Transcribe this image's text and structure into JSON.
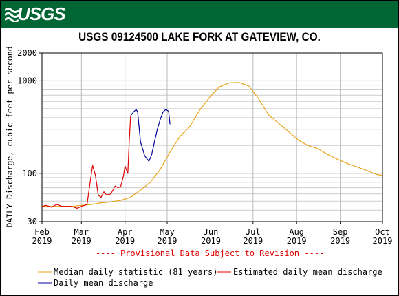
{
  "header": {
    "logo_text": "USGS"
  },
  "chart_data": {
    "type": "line",
    "title": "USGS 09124500 LAKE FORK AT GATEVIEW, CO.",
    "ylabel": "DAILY Discharge, cubic feet per second",
    "yscale": "log",
    "ylim": [
      30,
      2000
    ],
    "y_ticks": [
      {
        "value": 30,
        "label": "30"
      },
      {
        "value": 100,
        "label": "100"
      },
      {
        "value": 1000,
        "label": "1000"
      },
      {
        "value": 2000,
        "label": "2000"
      }
    ],
    "xlim": [
      "2019-02-01",
      "2019-10-01"
    ],
    "x_ticks": [
      {
        "date": "2019-02-01",
        "month": "Feb",
        "year": "2019"
      },
      {
        "date": "2019-03-01",
        "month": "Mar",
        "year": "2019"
      },
      {
        "date": "2019-04-01",
        "month": "Apr",
        "year": "2019"
      },
      {
        "date": "2019-05-01",
        "month": "May",
        "year": "2019"
      },
      {
        "date": "2019-06-01",
        "month": "Jun",
        "year": "2019"
      },
      {
        "date": "2019-07-01",
        "month": "Jul",
        "year": "2019"
      },
      {
        "date": "2019-08-01",
        "month": "Aug",
        "year": "2019"
      },
      {
        "date": "2019-09-01",
        "month": "Sep",
        "year": "2019"
      },
      {
        "date": "2019-10-01",
        "month": "Oct",
        "year": "2019"
      }
    ],
    "grid": true,
    "provisional_note": "---- Provisional Data Subject to Revision ----",
    "series": [
      {
        "name": "Median daily statistic (81 years)",
        "color": "#e8a317",
        "points": [
          [
            "2019-02-01",
            44
          ],
          [
            "2019-02-08",
            44
          ],
          [
            "2019-02-15",
            44
          ],
          [
            "2019-02-22",
            44
          ],
          [
            "2019-03-01",
            45
          ],
          [
            "2019-03-08",
            46
          ],
          [
            "2019-03-15",
            48
          ],
          [
            "2019-03-22",
            49
          ],
          [
            "2019-03-29",
            51
          ],
          [
            "2019-04-05",
            55
          ],
          [
            "2019-04-12",
            66
          ],
          [
            "2019-04-19",
            80
          ],
          [
            "2019-04-26",
            110
          ],
          [
            "2019-05-03",
            170
          ],
          [
            "2019-05-10",
            250
          ],
          [
            "2019-05-17",
            320
          ],
          [
            "2019-05-24",
            480
          ],
          [
            "2019-05-31",
            660
          ],
          [
            "2019-06-07",
            860
          ],
          [
            "2019-06-14",
            950
          ],
          [
            "2019-06-21",
            960
          ],
          [
            "2019-06-28",
            880
          ],
          [
            "2019-07-05",
            640
          ],
          [
            "2019-07-12",
            430
          ],
          [
            "2019-07-19",
            350
          ],
          [
            "2019-07-26",
            285
          ],
          [
            "2019-08-02",
            230
          ],
          [
            "2019-08-09",
            200
          ],
          [
            "2019-08-16",
            185
          ],
          [
            "2019-08-23",
            160
          ],
          [
            "2019-08-30",
            142
          ],
          [
            "2019-09-06",
            128
          ],
          [
            "2019-09-13",
            117
          ],
          [
            "2019-09-20",
            107
          ],
          [
            "2019-09-27",
            97
          ],
          [
            "2019-10-01",
            95
          ]
        ]
      },
      {
        "name": "Estimated daily mean discharge",
        "color": "#dd0000",
        "points": [
          [
            "2019-02-01",
            44
          ],
          [
            "2019-02-04",
            45
          ],
          [
            "2019-02-08",
            43
          ],
          [
            "2019-02-10",
            45
          ],
          [
            "2019-02-12",
            46
          ],
          [
            "2019-02-15",
            44
          ],
          [
            "2019-02-18",
            44
          ],
          [
            "2019-02-22",
            44
          ],
          [
            "2019-02-26",
            42
          ],
          [
            "2019-03-01",
            44
          ],
          [
            "2019-03-05",
            46
          ],
          [
            "2019-03-07",
            75
          ],
          [
            "2019-03-09",
            122
          ],
          [
            "2019-03-11",
            95
          ],
          [
            "2019-03-13",
            58
          ],
          [
            "2019-03-15",
            55
          ],
          [
            "2019-03-17",
            63
          ],
          [
            "2019-03-19",
            58
          ],
          [
            "2019-03-22",
            60
          ],
          [
            "2019-03-25",
            73
          ],
          [
            "2019-03-27",
            70
          ],
          [
            "2019-03-29",
            72
          ],
          [
            "2019-03-31",
            95
          ],
          [
            "2019-04-01",
            120
          ],
          [
            "2019-04-03",
            100
          ],
          [
            "2019-04-04",
            220
          ],
          [
            "2019-04-05",
            420
          ]
        ]
      },
      {
        "name": "Daily mean discharge",
        "color": "#000099",
        "points": [
          [
            "2019-04-05",
            420
          ],
          [
            "2019-04-07",
            460
          ],
          [
            "2019-04-09",
            490
          ],
          [
            "2019-04-10",
            460
          ],
          [
            "2019-04-12",
            220
          ],
          [
            "2019-04-15",
            155
          ],
          [
            "2019-04-18",
            135
          ],
          [
            "2019-04-20",
            160
          ],
          [
            "2019-04-22",
            220
          ],
          [
            "2019-04-24",
            300
          ],
          [
            "2019-04-26",
            380
          ],
          [
            "2019-04-28",
            460
          ],
          [
            "2019-04-30",
            490
          ],
          [
            "2019-05-02",
            470
          ],
          [
            "2019-05-03",
            340
          ]
        ]
      }
    ],
    "legend": {
      "placement": "bottom",
      "entries": [
        "Median daily statistic (81 years)",
        "Estimated daily mean discharge",
        "Daily mean discharge"
      ]
    }
  }
}
